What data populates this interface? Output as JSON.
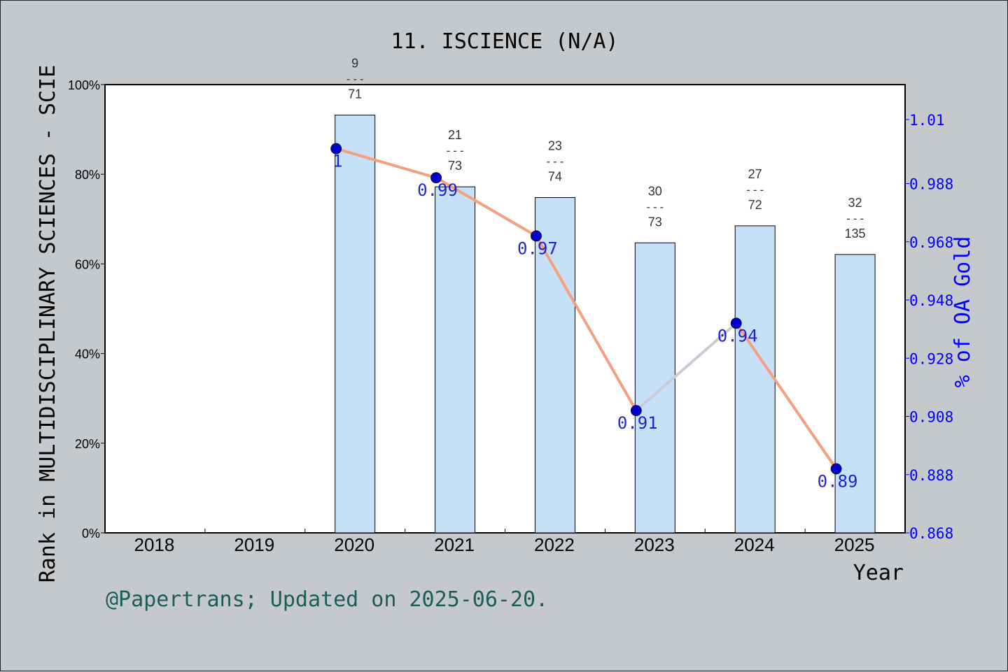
{
  "chart_data": {
    "type": "bar",
    "title": "11. ISCIENCE (N/A)",
    "xlabel": "Year",
    "ylabel": "Rank in MULTIDISCIPLINARY SCIENCES - SCIE",
    "y2label": "% of OA Gold",
    "footer": "@Papertrans; Updated on 2025-06-20.",
    "categories": [
      "2018",
      "2019",
      "2020",
      "2021",
      "2022",
      "2023",
      "2024",
      "2025"
    ],
    "ylim": [
      0,
      100
    ],
    "yticks": [
      "0%",
      "20%",
      "40%",
      "60%",
      "80%",
      "100%"
    ],
    "y2lim": [
      0.868,
      1.022
    ],
    "y2ticks": [
      "0.868",
      "0.888",
      "0.908",
      "0.928",
      "0.948",
      "0.968",
      "0.988",
      "1.01"
    ],
    "series": [
      {
        "kind": "bar",
        "values": [
          null,
          null,
          93.2,
          77.2,
          74.8,
          64.7,
          68.5,
          62.1
        ],
        "rank_labels": [
          null,
          null,
          [
            "9",
            "---",
            "71"
          ],
          [
            "21",
            "---",
            "73"
          ],
          [
            "23",
            "---",
            "74"
          ],
          [
            "30",
            "---",
            "73"
          ],
          [
            "27",
            "---",
            "72"
          ],
          [
            "32",
            "---",
            "135"
          ]
        ]
      },
      {
        "kind": "line",
        "values": [
          null,
          null,
          1.0,
          0.99,
          0.97,
          0.91,
          0.94,
          0.89
        ],
        "labels": [
          null,
          null,
          "1",
          "0.99",
          "0.97",
          "0.91",
          "0.94",
          "0.89"
        ]
      }
    ],
    "colors": {
      "bar_fill": "#c6e0f7",
      "line_down": "#f4a07f",
      "line_up": "#c8ccd6",
      "marker": "#0000cc",
      "right_axis": "#0000ff",
      "footer": "#1a5e57"
    },
    "grid": false
  }
}
